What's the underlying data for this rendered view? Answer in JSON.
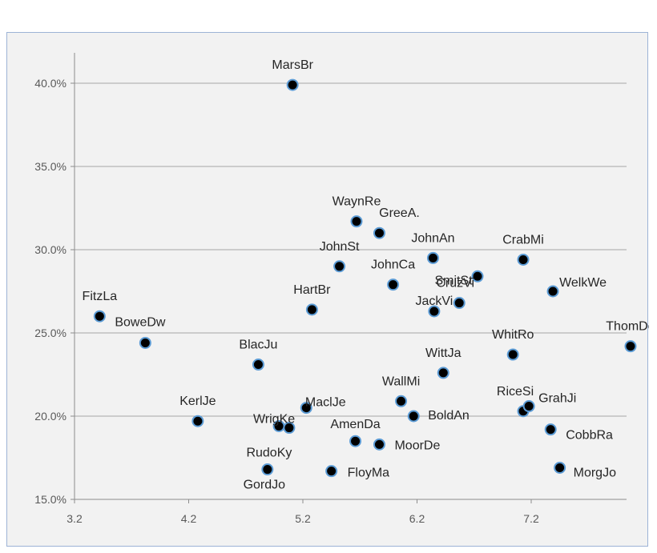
{
  "chart_data": {
    "type": "scatter",
    "title": "",
    "xlabel": "",
    "ylabel": "",
    "xlim": [
      3.2,
      8.2
    ],
    "ylim": [
      15.0,
      42.0
    ],
    "x_ticks": [
      3.2,
      4.2,
      5.2,
      6.2,
      7.2
    ],
    "x_tick_labels": [
      "3.2",
      "4.2",
      "5.2",
      "6.2",
      "7.2"
    ],
    "y_ticks": [
      15,
      20,
      25,
      30,
      35,
      40
    ],
    "y_tick_labels": [
      "15.0%",
      "20.0%",
      "25.0%",
      "30.0%",
      "35.0%",
      "40.0%"
    ],
    "grid": "horizontal",
    "legend": "none",
    "marker_fill": "#000000",
    "marker_edge": "#5b9bd5",
    "points": [
      {
        "label": "MarsBr",
        "x": 5.11,
        "y": 39.9
      },
      {
        "label": "WaynRe",
        "x": 5.67,
        "y": 31.7
      },
      {
        "label": "GreeA.",
        "x": 5.87,
        "y": 31.0
      },
      {
        "label": "JohnSt",
        "x": 5.52,
        "y": 29.0
      },
      {
        "label": "JohnAn",
        "x": 6.34,
        "y": 29.5
      },
      {
        "label": "CrabMi",
        "x": 7.13,
        "y": 29.4
      },
      {
        "label": "JohnCa",
        "x": 5.99,
        "y": 27.9
      },
      {
        "label": "SmitSt",
        "x": 6.73,
        "y": 28.4
      },
      {
        "label": "CruzVi",
        "x": 6.57,
        "y": 26.8
      },
      {
        "label": "WelkWe",
        "x": 7.39,
        "y": 27.5
      },
      {
        "label": "JackVi",
        "x": 6.35,
        "y": 26.3
      },
      {
        "label": "HartBr",
        "x": 5.28,
        "y": 26.4
      },
      {
        "label": "FitzLa",
        "x": 3.42,
        "y": 26.0
      },
      {
        "label": "BoweDw",
        "x": 3.82,
        "y": 24.4
      },
      {
        "label": "ThomDe",
        "x": 8.07,
        "y": 24.2
      },
      {
        "label": "WhitRo",
        "x": 7.04,
        "y": 23.7
      },
      {
        "label": "BlacJu",
        "x": 4.81,
        "y": 23.1
      },
      {
        "label": "WittJa",
        "x": 6.43,
        "y": 22.6
      },
      {
        "label": "WallMi",
        "x": 6.06,
        "y": 20.9
      },
      {
        "label": "RiceSi",
        "x": 7.13,
        "y": 20.3
      },
      {
        "label": "GrahJi",
        "x": 7.18,
        "y": 20.6
      },
      {
        "label": "BoldAn",
        "x": 6.17,
        "y": 20.0
      },
      {
        "label": "KerlJe",
        "x": 4.28,
        "y": 19.7
      },
      {
        "label": "MaclJe",
        "x": 5.23,
        "y": 20.5
      },
      {
        "label": "WrigKe",
        "x": 4.99,
        "y": 19.4
      },
      {
        "label": "RudoKy",
        "x": 5.08,
        "y": 19.3
      },
      {
        "label": "CobbRa",
        "x": 7.37,
        "y": 19.2
      },
      {
        "label": "AmenDa",
        "x": 5.66,
        "y": 18.5
      },
      {
        "label": "MoorDe",
        "x": 5.87,
        "y": 18.3
      },
      {
        "label": "GordJo",
        "x": 4.89,
        "y": 16.8
      },
      {
        "label": "FloyMa",
        "x": 5.45,
        "y": 16.7
      },
      {
        "label": "MorgJo",
        "x": 7.45,
        "y": 16.9
      }
    ]
  }
}
